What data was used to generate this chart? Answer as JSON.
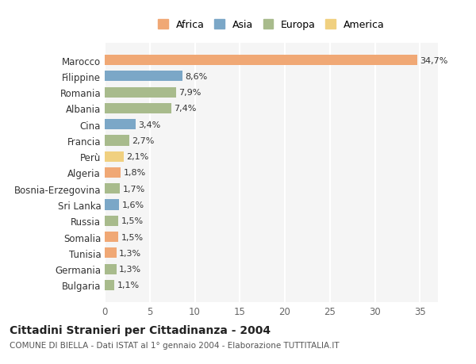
{
  "countries": [
    "Marocco",
    "Filippine",
    "Romania",
    "Albania",
    "Cina",
    "Francia",
    "Perù",
    "Algeria",
    "Bosnia-Erzegovina",
    "Sri Lanka",
    "Russia",
    "Somalia",
    "Tunisia",
    "Germania",
    "Bulgaria"
  ],
  "values": [
    34.7,
    8.6,
    7.9,
    7.4,
    3.4,
    2.7,
    2.1,
    1.8,
    1.7,
    1.6,
    1.5,
    1.5,
    1.3,
    1.3,
    1.1
  ],
  "labels": [
    "34,7%",
    "8,6%",
    "7,9%",
    "7,4%",
    "3,4%",
    "2,7%",
    "2,1%",
    "1,8%",
    "1,7%",
    "1,6%",
    "1,5%",
    "1,5%",
    "1,3%",
    "1,3%",
    "1,1%"
  ],
  "continents": [
    "Africa",
    "Asia",
    "Europa",
    "Europa",
    "Asia",
    "Europa",
    "America",
    "Africa",
    "Europa",
    "Asia",
    "Europa",
    "Africa",
    "Africa",
    "Europa",
    "Europa"
  ],
  "colors": {
    "Africa": "#F0A875",
    "Asia": "#7BA7C7",
    "Europa": "#A8BB8C",
    "America": "#F0D080"
  },
  "title": "Cittadini Stranieri per Cittadinanza - 2004",
  "subtitle": "COMUNE DI BIELLA - Dati ISTAT al 1° gennaio 2004 - Elaborazione TUTTITALIA.IT",
  "xlim": [
    0,
    37
  ],
  "background_color": "#ffffff",
  "plot_bg_color": "#f5f5f5",
  "grid_color": "#ffffff",
  "legend_order": [
    "Africa",
    "Asia",
    "Europa",
    "America"
  ]
}
